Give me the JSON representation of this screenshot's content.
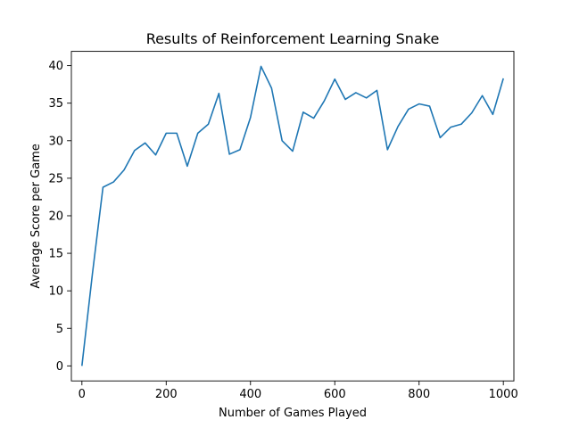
{
  "chart_data": {
    "type": "line",
    "title": "Results of Reinforcement Learning Snake",
    "xlabel": "Number of Games Played",
    "ylabel": "Average Score per Game",
    "xlim": [
      -25,
      1025
    ],
    "ylim": [
      -2,
      41.9
    ],
    "xticks": [
      0,
      200,
      400,
      600,
      800,
      1000
    ],
    "yticks": [
      0,
      5,
      10,
      15,
      20,
      25,
      30,
      35,
      40
    ],
    "grid": false,
    "line_color": "#1f77b4",
    "series": [
      {
        "x": [
          0,
          25,
          50,
          75,
          100,
          125,
          150,
          175,
          200,
          225,
          250,
          275,
          300,
          325,
          350,
          375,
          400,
          425,
          450,
          475,
          500,
          525,
          550,
          575,
          600,
          625,
          650,
          675,
          700,
          725,
          750,
          775,
          800,
          825,
          850,
          875,
          900,
          925,
          950,
          975,
          1000
        ],
        "values": [
          0,
          12.3,
          23.8,
          24.5,
          26.1,
          28.7,
          29.7,
          28.1,
          31.0,
          31.0,
          26.6,
          31.0,
          32.2,
          36.3,
          28.2,
          28.8,
          33.1,
          39.9,
          37.0,
          30.0,
          28.6,
          33.8,
          33.0,
          35.3,
          38.2,
          35.5,
          36.4,
          35.7,
          36.7,
          28.8,
          31.9,
          34.2,
          34.9,
          34.6,
          30.4,
          31.8,
          32.2,
          33.7,
          36.0,
          33.5,
          38.3
        ]
      }
    ]
  }
}
